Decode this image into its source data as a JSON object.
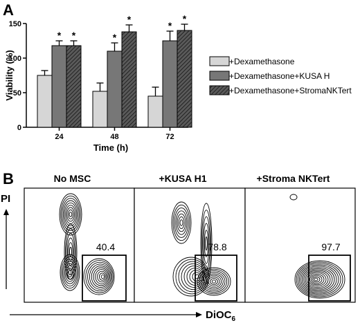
{
  "panel_a": {
    "letter": "A",
    "chart_data": {
      "type": "bar",
      "xlabel": "Time (h)",
      "ylabel": "Viability (%)",
      "ylim": [
        0,
        150
      ],
      "yticks": [
        0,
        50,
        100,
        150
      ],
      "categories": [
        "24",
        "48",
        "72"
      ],
      "series": [
        {
          "name": "+Dexamethasone",
          "values": [
            75,
            52,
            45
          ],
          "errors": [
            7,
            12,
            13
          ],
          "fill": "#d6d6d6",
          "hatch": false,
          "sig": [
            false,
            false,
            false
          ]
        },
        {
          "name": "+Dexamethasone+KUSA H",
          "values": [
            118,
            110,
            125
          ],
          "errors": [
            7,
            12,
            14
          ],
          "fill": "#777777",
          "hatch": false,
          "sig": [
            true,
            true,
            true
          ]
        },
        {
          "name": "+Dexamethasone+StromaNKTert",
          "values": [
            118,
            138,
            140
          ],
          "errors": [
            7,
            10,
            9
          ],
          "fill": "#4a4a4a",
          "hatch": true,
          "sig": [
            true,
            true,
            true
          ]
        }
      ],
      "significance_marker": "*",
      "legend_position": "right"
    }
  },
  "panel_b": {
    "letter": "B",
    "y_axis_label": "PI",
    "x_axis_label_main": "DiOC",
    "x_axis_label_sub": "6",
    "plots": [
      {
        "title": "No MSC",
        "gate_value": "40.4"
      },
      {
        "title": "+KUSA H1",
        "gate_value": "78.8"
      },
      {
        "title": "+Stroma NKTert",
        "gate_value": "97.7"
      }
    ]
  }
}
